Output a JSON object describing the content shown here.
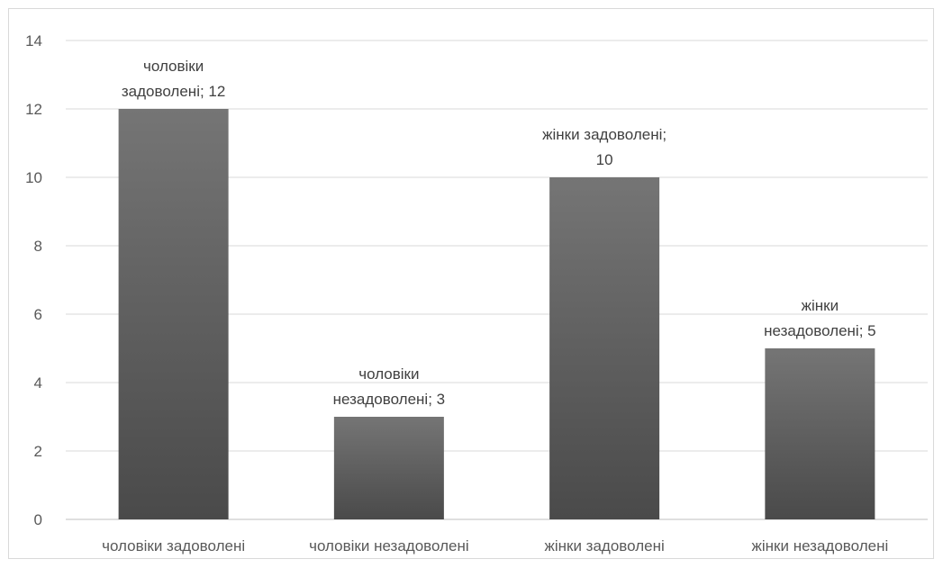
{
  "chart_data": {
    "type": "bar",
    "title": "",
    "xlabel": "",
    "ylabel": "",
    "categories": [
      "чоловіки задоволені",
      "чоловіки незадоволені",
      "жінки задоволені",
      "жінки незадоволені"
    ],
    "values": [
      12,
      3,
      10,
      5
    ],
    "data_labels": [
      [
        "чоловіки",
        "задоволені; 12"
      ],
      [
        "чоловіки",
        "незадоволені; 3"
      ],
      [
        "жінки задоволені;",
        "10"
      ],
      [
        "жінки",
        "незадоволені; 5"
      ]
    ],
    "ylim": [
      0,
      14
    ],
    "yticks": [
      "0",
      "2",
      "4",
      "6",
      "8",
      "10",
      "12",
      "14"
    ],
    "grid": true,
    "legend": "none",
    "colors": {
      "bar_top": "#757575",
      "bar_bottom": "#4a4a4a",
      "grid": "#d9d9d9",
      "axis": "#bfbfbf"
    }
  }
}
